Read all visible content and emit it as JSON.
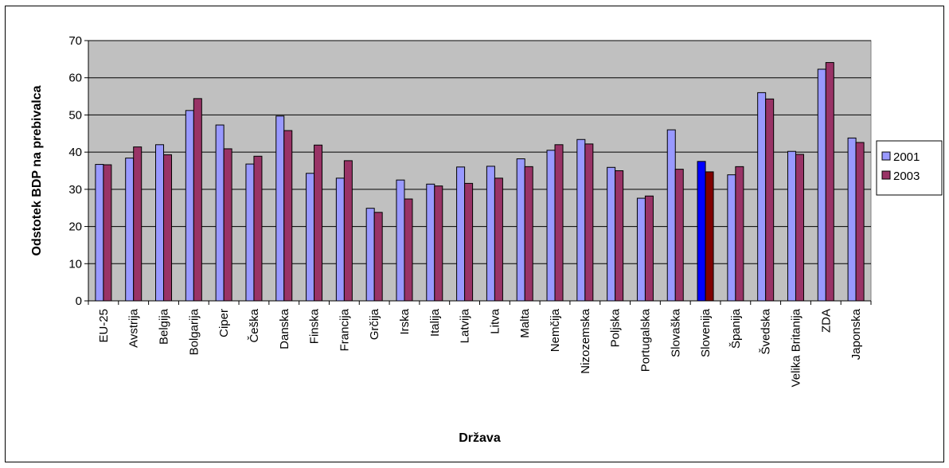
{
  "chart_data": {
    "type": "bar",
    "title": "",
    "xlabel": "Država",
    "ylabel": "Odstotek BDP na prebivalca",
    "ylim": [
      0,
      70
    ],
    "yticks": [
      0,
      10,
      20,
      30,
      40,
      50,
      60,
      70
    ],
    "grid": true,
    "legend_position": "right",
    "plot_background": "#c0c0c0",
    "highlight_category": "Slovenija",
    "categories": [
      "EU-25",
      "Avstrija",
      "Belgija",
      "Bolgarija",
      "Ciper",
      "Češka",
      "Danska",
      "Finska",
      "Francija",
      "Grčija",
      "Irska",
      "Italija",
      "Latvija",
      "Litva",
      "Malta",
      "Nemčija",
      "Nizozemska",
      "Poljska",
      "Portugalska",
      "Slovaška",
      "Slovenija",
      "Španija",
      "Švedska",
      "Velika Britanija",
      "ZDA",
      "Japonska"
    ],
    "series": [
      {
        "name": "2001",
        "color": "#9999ff",
        "highlight_color": "#0000ff",
        "values": [
          36.7,
          38.4,
          42.0,
          51.2,
          47.3,
          36.8,
          49.7,
          34.3,
          33.0,
          24.9,
          32.5,
          31.4,
          36.0,
          36.2,
          38.2,
          40.5,
          43.4,
          35.9,
          27.6,
          46.0,
          37.5,
          33.9,
          56.0,
          40.2,
          62.3,
          43.8
        ]
      },
      {
        "name": "2003",
        "color": "#993366",
        "highlight_color": "#800000",
        "values": [
          36.6,
          41.4,
          39.3,
          54.4,
          40.9,
          38.9,
          45.8,
          41.9,
          37.7,
          23.8,
          27.4,
          30.9,
          31.6,
          33.0,
          36.1,
          42.0,
          42.2,
          35.0,
          28.2,
          35.4,
          34.7,
          36.1,
          54.3,
          39.4,
          64.1,
          42.6
        ]
      }
    ]
  }
}
